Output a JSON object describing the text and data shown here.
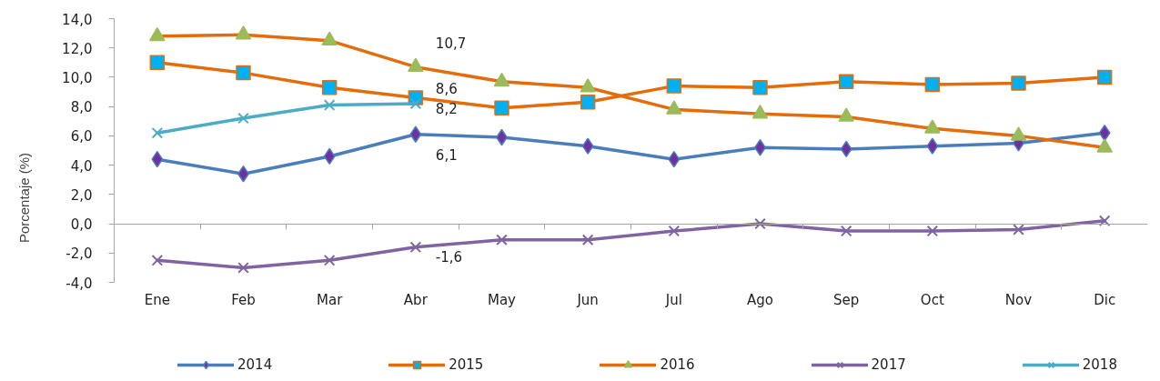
{
  "chart_data": {
    "type": "line",
    "ylabel": "Porcentaje (%)",
    "categories": [
      "Ene",
      "Feb",
      "Mar",
      "Abr",
      "May",
      "Jun",
      "Jul",
      "Ago",
      "Sep",
      "Oct",
      "Nov",
      "Dic"
    ],
    "series": [
      {
        "name": "2014",
        "color": "#4a7ebb",
        "marker": "diamond",
        "colors": [
          "#7030a0",
          "#7030a0",
          "#7030a0",
          "#7030a0",
          "#7030a0",
          "#7030a0",
          "#7030a0",
          "#7030a0",
          "#7030a0",
          "#7030a0",
          "#7030a0",
          "#7030a0"
        ],
        "values": [
          4.4,
          3.4,
          4.6,
          6.1,
          5.9,
          5.3,
          4.4,
          5.2,
          5.1,
          5.3,
          5.5,
          6.2
        ],
        "value_labels": [
          null,
          null,
          null,
          "6,1",
          null,
          null,
          null,
          null,
          null,
          null,
          null,
          null
        ]
      },
      {
        "name": "2015",
        "color": "#e46c0a",
        "marker": "square",
        "colors": [
          "#00b0f0",
          "#00b0f0",
          "#00b0f0",
          "#00b0f0",
          "#00b0f0",
          "#00b0f0",
          "#00b0f0",
          "#00b0f0",
          "#00b0f0",
          "#00b0f0",
          "#00b0f0",
          "#00b0f0"
        ],
        "values": [
          11.0,
          10.3,
          9.3,
          8.6,
          7.9,
          8.3,
          9.4,
          9.3,
          9.7,
          9.5,
          9.6,
          10.0
        ],
        "value_labels": [
          null,
          null,
          null,
          "8,6",
          null,
          null,
          null,
          null,
          null,
          null,
          null,
          null
        ]
      },
      {
        "name": "2016",
        "color": "#e46c0a",
        "marker": "triangle",
        "colors": [
          "#9bbb59",
          "#9bbb59",
          "#9bbb59",
          "#9bbb59",
          "#9bbb59",
          "#9bbb59",
          "#9bbb59",
          "#9bbb59",
          "#9bbb59",
          "#9bbb59",
          "#9bbb59",
          "#9bbb59"
        ],
        "values": [
          12.8,
          12.9,
          12.5,
          10.7,
          9.7,
          9.3,
          7.8,
          7.5,
          7.3,
          6.5,
          6.0,
          5.2
        ],
        "value_labels": [
          null,
          null,
          null,
          "10,7",
          null,
          null,
          null,
          null,
          null,
          null,
          null,
          null
        ]
      },
      {
        "name": "2017",
        "color": "#8064a2",
        "marker": "cross",
        "values": [
          -2.5,
          -3.0,
          -2.5,
          -1.6,
          -1.1,
          -1.1,
          -0.5,
          0.0,
          -0.5,
          -0.5,
          -0.4,
          0.2
        ],
        "value_labels": [
          null,
          null,
          null,
          "-1,6",
          null,
          null,
          null,
          null,
          null,
          null,
          null,
          null
        ]
      },
      {
        "name": "2018",
        "color": "#4bacc6",
        "marker": "cross",
        "values": [
          6.2,
          7.2,
          8.1,
          8.2,
          null,
          null,
          null,
          null,
          null,
          null,
          null,
          null
        ],
        "value_labels": [
          null,
          null,
          null,
          "8,2",
          null,
          null,
          null,
          null,
          null,
          null,
          null,
          null
        ]
      }
    ],
    "ylim": [
      -4,
      14
    ],
    "yticks": [
      {
        "value": -4,
        "label": "-4,0"
      },
      {
        "value": -2,
        "label": "-2,0"
      },
      {
        "value": 0,
        "label": "0,0"
      },
      {
        "value": 2,
        "label": "2,0"
      },
      {
        "value": 4,
        "label": "4,0"
      },
      {
        "value": 6,
        "label": "6,0"
      },
      {
        "value": 8,
        "label": "8,0"
      },
      {
        "value": 10,
        "label": "10,0"
      },
      {
        "value": 12,
        "label": "12,0"
      },
      {
        "value": 14,
        "label": "14,0"
      }
    ],
    "legend": "bottom",
    "line_style": "solid"
  }
}
